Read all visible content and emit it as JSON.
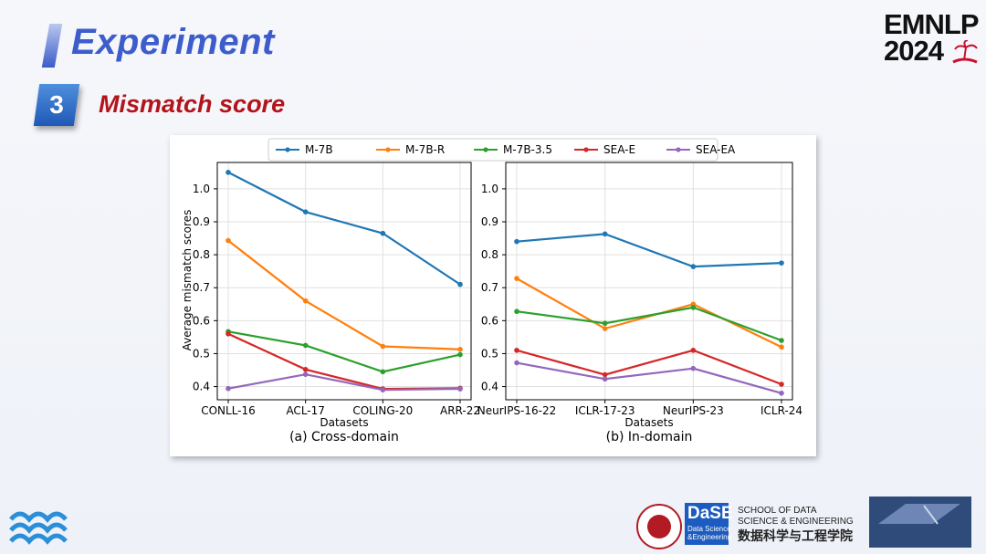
{
  "header": {
    "title": "Experiment",
    "section_number": "3",
    "section_title": "Mismatch score",
    "conference_line1": "EMNLP",
    "conference_line2": "2024"
  },
  "footer": {
    "school_line1": "SCHOOL OF DATA",
    "school_line2": "SCIENCE & ENGINEERING",
    "school_cn": "数据科学与工程学院",
    "dase_logo": "DaSE",
    "dase_sub1": "Data Science",
    "dase_sub2": "&Engineering"
  },
  "colors": {
    "m7b": "#1f77b4",
    "m7br": "#ff7f0e",
    "m7b35": "#2ca02c",
    "seae": "#d62728",
    "seaea": "#9467bd"
  },
  "chart_data": {
    "type": "line",
    "legend_position": "top",
    "legend": [
      "M-7B",
      "M-7B-R",
      "M-7B-3.5",
      "SEA-E",
      "SEA-EA"
    ],
    "ylabel": "Average mismatch scores",
    "ylim": [
      0.36,
      1.08
    ],
    "yticks": [
      "1.0",
      "0.9",
      "0.8",
      "0.7",
      "0.6",
      "0.5",
      "0.4"
    ],
    "grid": true,
    "panels": [
      {
        "caption": "(a) Cross-domain",
        "xlabel": "Datasets",
        "categories": [
          "CONLL-16",
          "ACL-17",
          "COLING-20",
          "ARR-22"
        ],
        "series": [
          {
            "name": "M-7B",
            "values": [
              1.05,
              0.93,
              0.865,
              0.71
            ]
          },
          {
            "name": "M-7B-R",
            "values": [
              0.843,
              0.66,
              0.522,
              0.513
            ]
          },
          {
            "name": "M-7B-3.5",
            "values": [
              0.567,
              0.525,
              0.445,
              0.497
            ]
          },
          {
            "name": "SEA-E",
            "values": [
              0.56,
              0.452,
              0.393,
              0.395
            ]
          },
          {
            "name": "SEA-EA",
            "values": [
              0.394,
              0.437,
              0.39,
              0.393
            ]
          }
        ]
      },
      {
        "caption": "(b) In-domain",
        "xlabel": "Datasets",
        "categories": [
          "NeurIPS-16-22",
          "ICLR-17-23",
          "NeurIPS-23",
          "ICLR-24"
        ],
        "series": [
          {
            "name": "M-7B",
            "values": [
              0.84,
              0.863,
              0.764,
              0.775
            ]
          },
          {
            "name": "M-7B-R",
            "values": [
              0.728,
              0.576,
              0.65,
              0.52
            ]
          },
          {
            "name": "M-7B-3.5",
            "values": [
              0.628,
              0.592,
              0.64,
              0.54
            ]
          },
          {
            "name": "SEA-E",
            "values": [
              0.51,
              0.436,
              0.51,
              0.407
            ]
          },
          {
            "name": "SEA-EA",
            "values": [
              0.472,
              0.423,
              0.455,
              0.38
            ]
          }
        ]
      }
    ]
  }
}
